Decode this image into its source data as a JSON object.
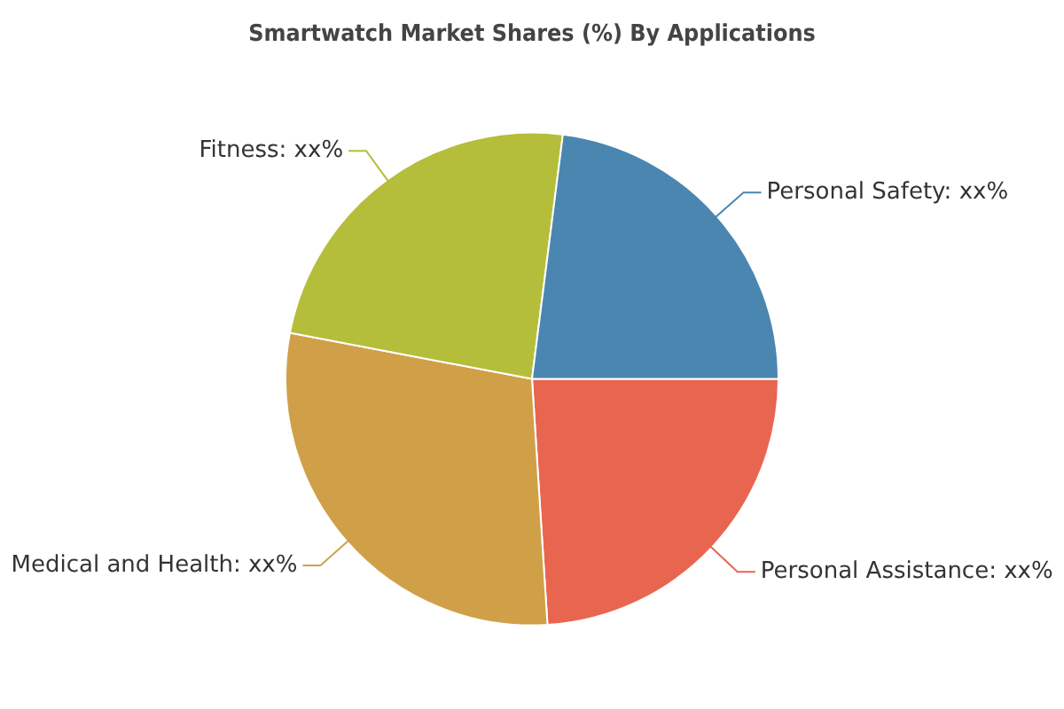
{
  "chart_data": {
    "type": "pie",
    "title": "Smartwatch Market Shares (%) By Applications",
    "categories": [
      "Personal Assistance",
      "Medical and Health",
      "Fitness",
      "Personal Safety"
    ],
    "values": [
      24,
      29,
      24,
      23
    ],
    "value_labels": [
      "xx%",
      "xx%",
      "xx%",
      "xx%"
    ],
    "colors": [
      "#e8664f",
      "#d0a048",
      "#b5be3a",
      "#4a86b0"
    ],
    "legend": false
  }
}
